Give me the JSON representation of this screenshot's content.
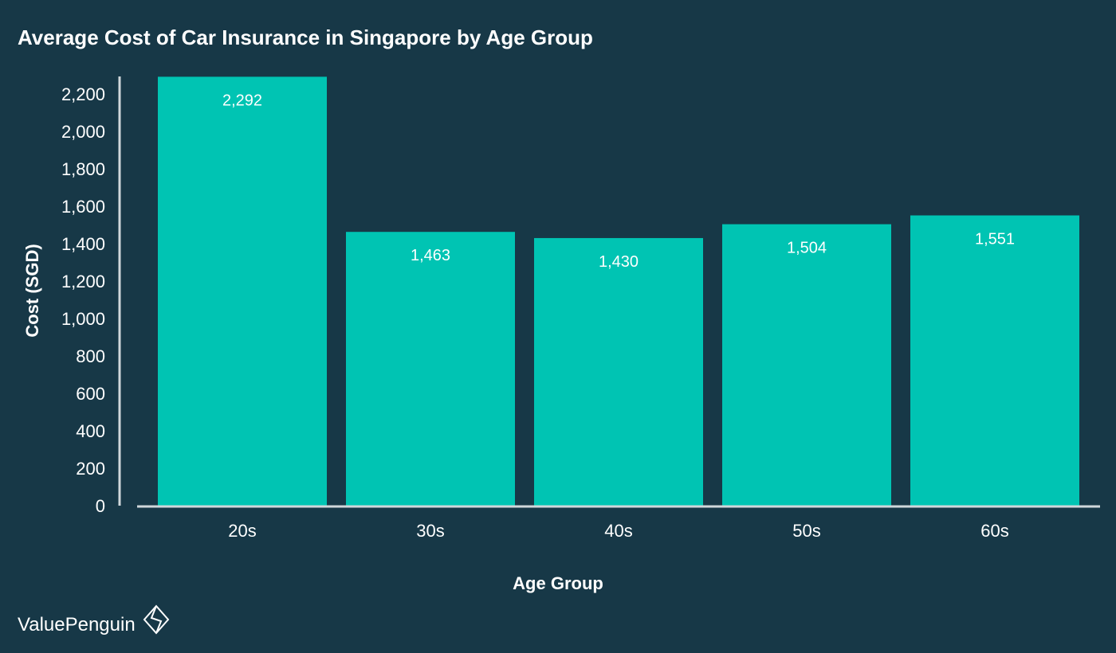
{
  "colors": {
    "background": "#173847",
    "bar": "#00C4B3",
    "text": "#FFFFFF",
    "axis": "#D0D7DB"
  },
  "brand": {
    "name": "ValuePenguin",
    "icon": "valuepenguin-logo-icon"
  },
  "chart_data": {
    "type": "bar",
    "title": "Average Cost of Car Insurance in Singapore by Age Group",
    "xlabel": "Age Group",
    "ylabel": "Cost (SGD)",
    "categories": [
      "20s",
      "30s",
      "40s",
      "50s",
      "60s"
    ],
    "values": [
      2292,
      1463,
      1430,
      1504,
      1551
    ],
    "value_labels": [
      "2,292",
      "1,463",
      "1,430",
      "1,504",
      "1,551"
    ],
    "ylim": [
      0,
      2300
    ],
    "yticks": [
      0,
      200,
      400,
      600,
      800,
      1000,
      1200,
      1400,
      1600,
      1800,
      2000,
      2200
    ],
    "ytick_labels": [
      "0",
      "200",
      "400",
      "600",
      "800",
      "1,000",
      "1,200",
      "1,400",
      "1,600",
      "1,800",
      "2,000",
      "2,200"
    ],
    "grid": false,
    "legend": "none",
    "data_label_position": "inside-top"
  }
}
